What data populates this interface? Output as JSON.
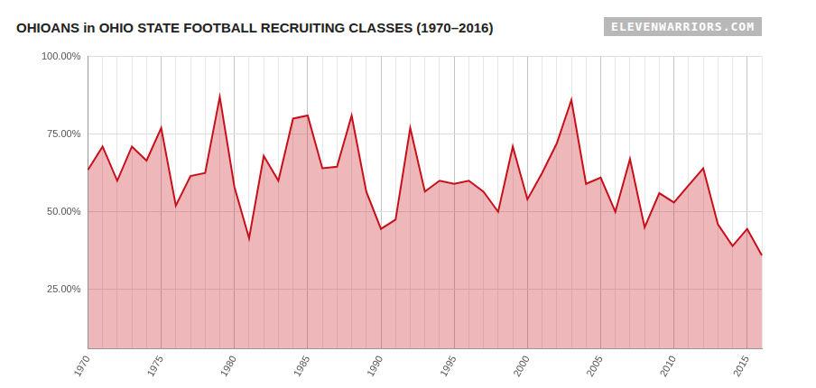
{
  "chart_data": {
    "type": "area",
    "title": "OHIOANS in OHIO STATE FOOTBALL RECRUITING CLASSES (1970–2016)",
    "annotations": [
      "ELEVENWARRIORS.COM"
    ],
    "categories": [
      "1970",
      null,
      null,
      null,
      null,
      "1975",
      null,
      null,
      null,
      null,
      "1980",
      null,
      null,
      null,
      null,
      "1985",
      null,
      null,
      null,
      null,
      "1990",
      null,
      null,
      null,
      null,
      "1995",
      null,
      null,
      null,
      null,
      "2000",
      null,
      null,
      null,
      null,
      "2005",
      null,
      null,
      null,
      null,
      "2010",
      null,
      null,
      null,
      null,
      "2015",
      null
    ],
    "values": [
      63.5,
      71,
      60,
      71,
      66.5,
      77,
      52,
      61.5,
      62.5,
      87,
      58,
      41.5,
      68,
      60,
      80,
      81,
      64,
      64.5,
      81,
      56.5,
      44.5,
      47.5,
      77,
      56.5,
      60,
      59,
      60,
      56.5,
      50,
      71,
      54,
      62.5,
      72,
      86,
      59,
      61,
      50,
      67,
      45,
      56,
      53,
      58.5,
      64,
      46,
      39,
      44.5,
      36
    ],
    "color": "#c8101a",
    "ylim": [
      6,
      100
    ],
    "yticks": [
      {
        "value": 25,
        "label": "25.00%"
      },
      {
        "value": 50,
        "label": "50.00%"
      },
      {
        "value": 75,
        "label": "75.00%"
      },
      {
        "value": 100,
        "label": "100.00%"
      }
    ],
    "grid": true
  }
}
